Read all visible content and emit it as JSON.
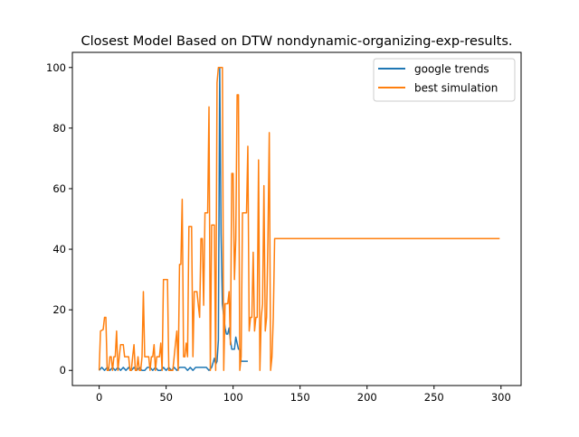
{
  "chart_data": {
    "type": "line",
    "title": "Closest Model Based on DTW nondynamic-organizing-exp-results.",
    "xlabel": "",
    "ylabel": "",
    "xlim": [
      -20,
      315
    ],
    "ylim": [
      -5,
      105
    ],
    "xticks": [
      0,
      50,
      100,
      150,
      200,
      250,
      300
    ],
    "yticks": [
      0,
      20,
      40,
      60,
      80,
      100
    ],
    "grid": false,
    "legend_position": "top-right",
    "series": [
      {
        "name": "google trends",
        "color": "#1f77b4",
        "points": [
          [
            0,
            0
          ],
          [
            2,
            1
          ],
          [
            4,
            0
          ],
          [
            6,
            1
          ],
          [
            8,
            0
          ],
          [
            10,
            1
          ],
          [
            12,
            0
          ],
          [
            14,
            1
          ],
          [
            16,
            0
          ],
          [
            18,
            1
          ],
          [
            20,
            0
          ],
          [
            22,
            1
          ],
          [
            24,
            0
          ],
          [
            26,
            1
          ],
          [
            28,
            0
          ],
          [
            30,
            1
          ],
          [
            32,
            0
          ],
          [
            34,
            0
          ],
          [
            36,
            1
          ],
          [
            38,
            1
          ],
          [
            40,
            0
          ],
          [
            42,
            1
          ],
          [
            44,
            0
          ],
          [
            46,
            0
          ],
          [
            48,
            1
          ],
          [
            50,
            0
          ],
          [
            52,
            1
          ],
          [
            54,
            0
          ],
          [
            56,
            1
          ],
          [
            58,
            0
          ],
          [
            60,
            1
          ],
          [
            62,
            1
          ],
          [
            64,
            1
          ],
          [
            66,
            0
          ],
          [
            68,
            1
          ],
          [
            70,
            0
          ],
          [
            72,
            1
          ],
          [
            74,
            1
          ],
          [
            76,
            1
          ],
          [
            78,
            1
          ],
          [
            80,
            1
          ],
          [
            82,
            0
          ],
          [
            84,
            1
          ],
          [
            86,
            4
          ],
          [
            87,
            2
          ],
          [
            88,
            3
          ],
          [
            89,
            10
          ],
          [
            90,
            100
          ],
          [
            91,
            45
          ],
          [
            92,
            22
          ],
          [
            93,
            18
          ],
          [
            94,
            14
          ],
          [
            95,
            12
          ],
          [
            96,
            12
          ],
          [
            97,
            14
          ],
          [
            98,
            10
          ],
          [
            99,
            7
          ],
          [
            100,
            7
          ],
          [
            101,
            7
          ],
          [
            102,
            11
          ],
          [
            103,
            9
          ],
          [
            104,
            7
          ],
          [
            105,
            7
          ],
          [
            106,
            3
          ],
          [
            108,
            3
          ],
          [
            110,
            3
          ],
          [
            111,
            3
          ]
        ]
      },
      {
        "name": "best simulation",
        "color": "#ff7f0e",
        "points": [
          [
            0,
            0
          ],
          [
            1,
            13
          ],
          [
            3,
            13.5
          ],
          [
            4,
            17.5
          ],
          [
            5,
            17.5
          ],
          [
            6,
            0
          ],
          [
            7,
            0
          ],
          [
            8,
            4.5
          ],
          [
            9,
            4.5
          ],
          [
            10,
            0
          ],
          [
            11,
            4.5
          ],
          [
            12,
            4.5
          ],
          [
            13,
            13
          ],
          [
            14,
            0
          ],
          [
            15,
            4.5
          ],
          [
            16,
            8.5
          ],
          [
            18,
            8.5
          ],
          [
            19,
            4.5
          ],
          [
            21,
            4.5
          ],
          [
            22,
            4.5
          ],
          [
            23,
            0
          ],
          [
            24,
            0
          ],
          [
            25,
            4.5
          ],
          [
            26,
            8.5
          ],
          [
            27,
            0
          ],
          [
            28,
            0
          ],
          [
            29,
            4.5
          ],
          [
            30,
            0
          ],
          [
            31,
            0
          ],
          [
            32,
            4.5
          ],
          [
            33,
            26
          ],
          [
            34,
            4.5
          ],
          [
            36,
            4.5
          ],
          [
            37,
            4.5
          ],
          [
            38,
            0
          ],
          [
            39,
            4.5
          ],
          [
            40,
            4.5
          ],
          [
            41,
            8.5
          ],
          [
            42,
            0
          ],
          [
            43,
            4.5
          ],
          [
            45,
            4.5
          ],
          [
            46,
            9
          ],
          [
            47,
            0
          ],
          [
            48,
            30
          ],
          [
            51,
            30
          ],
          [
            52,
            0
          ],
          [
            54,
            0
          ],
          [
            55,
            0
          ],
          [
            56,
            4.5
          ],
          [
            57,
            9
          ],
          [
            58,
            13
          ],
          [
            59,
            0
          ],
          [
            60,
            35
          ],
          [
            61,
            35
          ],
          [
            62,
            56.5
          ],
          [
            63,
            4.5
          ],
          [
            64,
            4.5
          ],
          [
            65,
            9
          ],
          [
            66,
            4.5
          ],
          [
            67,
            47.5
          ],
          [
            69,
            47.5
          ],
          [
            70,
            4.5
          ],
          [
            71,
            26
          ],
          [
            73,
            26
          ],
          [
            75,
            17.5
          ],
          [
            76,
            43.5
          ],
          [
            77,
            43.5
          ],
          [
            78,
            21.5
          ],
          [
            79,
            52
          ],
          [
            81,
            52
          ],
          [
            82,
            87
          ],
          [
            83,
            0
          ],
          [
            84,
            48
          ],
          [
            86,
            48
          ],
          [
            87,
            0
          ],
          [
            88,
            95
          ],
          [
            89,
            100
          ],
          [
            92,
            100
          ],
          [
            93,
            0
          ],
          [
            94,
            22
          ],
          [
            96,
            22
          ],
          [
            97,
            26
          ],
          [
            98,
            8.5
          ],
          [
            99,
            65
          ],
          [
            100,
            65
          ],
          [
            101,
            30
          ],
          [
            102,
            43.5
          ],
          [
            103,
            91
          ],
          [
            104,
            91
          ],
          [
            105,
            0
          ],
          [
            106,
            4.5
          ],
          [
            107,
            52
          ],
          [
            110,
            52
          ],
          [
            111,
            74
          ],
          [
            112,
            13
          ],
          [
            113,
            17.5
          ],
          [
            114,
            17.5
          ],
          [
            115,
            39
          ],
          [
            116,
            13
          ],
          [
            117,
            17.5
          ],
          [
            118,
            17.5
          ],
          [
            119,
            69.5
          ],
          [
            120,
            0
          ],
          [
            121,
            17.5
          ],
          [
            122,
            22
          ],
          [
            123,
            61
          ],
          [
            124,
            13
          ],
          [
            125,
            17.5
          ],
          [
            126,
            43.5
          ],
          [
            127,
            78.5
          ],
          [
            128,
            0
          ],
          [
            129,
            4.5
          ],
          [
            130,
            17.5
          ],
          [
            131,
            43.5
          ],
          [
            299,
            43.5
          ]
        ]
      }
    ]
  }
}
